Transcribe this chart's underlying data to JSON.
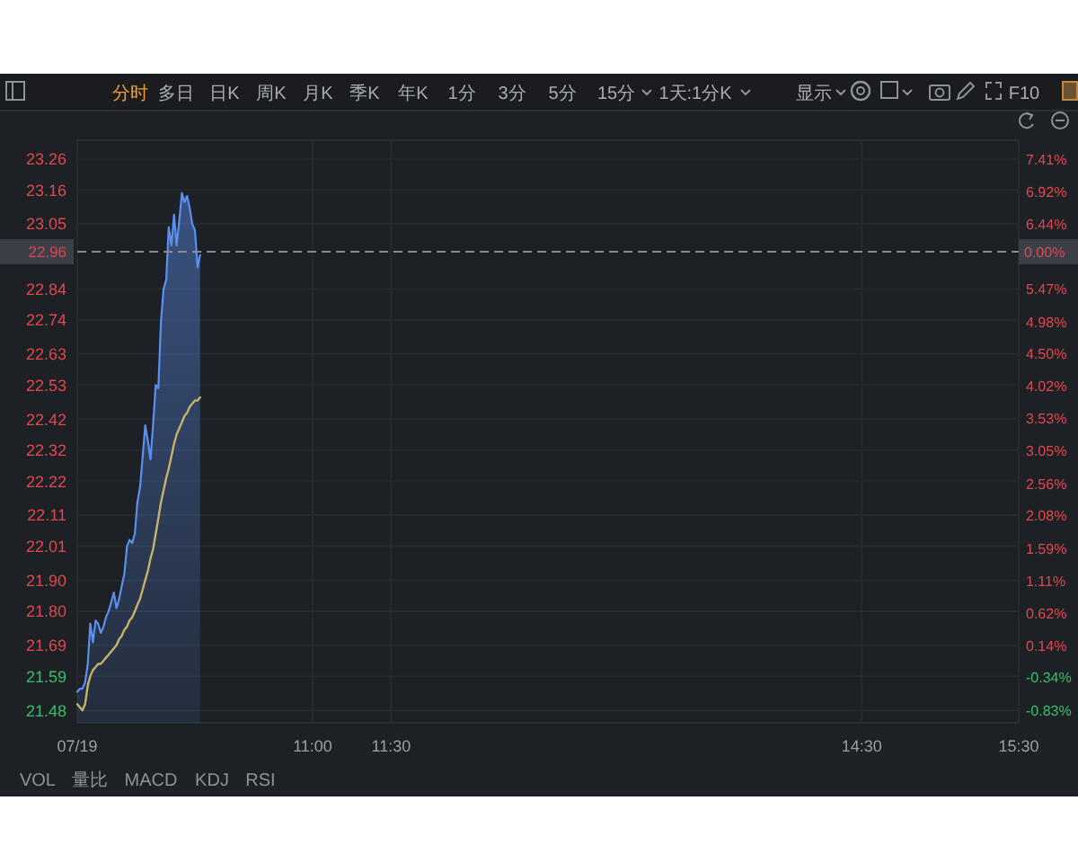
{
  "chart_data": {
    "type": "line",
    "x": [
      9.5,
      9.517,
      9.533,
      9.55,
      9.567,
      9.583,
      9.6,
      9.617,
      9.633,
      9.65,
      9.667,
      9.683,
      9.7,
      9.717,
      9.733,
      9.75,
      9.767,
      9.783,
      9.8,
      9.817,
      9.833,
      9.85,
      9.867,
      9.883,
      9.9,
      9.917,
      9.933,
      9.95,
      9.967,
      9.983,
      10,
      10.017,
      10.033,
      10.05,
      10.067,
      10.083,
      10.1,
      10.117,
      10.133,
      10.15,
      10.167,
      10.183,
      10.2,
      10.217,
      10.233,
      10.25,
      10.267,
      10.283
    ],
    "series": [
      {
        "type": "area",
        "color": "#5b8ff0",
        "values": [
          21.54,
          21.55,
          21.55,
          21.57,
          21.63,
          21.76,
          21.7,
          21.77,
          21.76,
          21.73,
          21.75,
          21.78,
          21.8,
          21.83,
          21.86,
          21.81,
          21.84,
          21.88,
          21.92,
          22.01,
          22.03,
          22.02,
          22.05,
          22.15,
          22.2,
          22.3,
          22.4,
          22.35,
          22.29,
          22.4,
          22.53,
          22.52,
          22.73,
          22.84,
          22.87,
          23.04,
          22.98,
          23.08,
          22.98,
          23.06,
          23.15,
          23.12,
          23.14,
          23.1,
          23.05,
          23.03,
          22.91,
          22.95
        ]
      },
      {
        "color": "#c7b26b",
        "values": [
          21.5,
          21.49,
          21.48,
          21.5,
          21.56,
          21.59,
          21.61,
          21.62,
          21.63,
          21.63,
          21.64,
          21.65,
          21.66,
          21.67,
          21.68,
          21.69,
          21.71,
          21.72,
          21.74,
          21.75,
          21.77,
          21.78,
          21.8,
          21.82,
          21.84,
          21.87,
          21.9,
          21.93,
          21.97,
          22.0,
          22.05,
          22.1,
          22.15,
          22.19,
          22.23,
          22.26,
          22.3,
          22.34,
          22.37,
          22.39,
          22.41,
          22.43,
          22.44,
          22.46,
          22.47,
          22.48,
          22.48,
          22.49
        ]
      }
    ],
    "xlim": [
      9.5,
      15.5
    ],
    "xticks": [
      {
        "value": 9.5,
        "label": "07/19"
      },
      {
        "value": 11,
        "label": "11:00"
      },
      {
        "value": 11.5,
        "label": "11:30"
      },
      {
        "value": 14.5,
        "label": "14:30"
      },
      {
        "value": 15.5,
        "label": "15:30"
      }
    ],
    "ylim": [
      21.44,
      23.32
    ],
    "yticks": [
      23.26,
      23.16,
      23.05,
      22.84,
      22.74,
      22.63,
      22.53,
      22.42,
      22.32,
      22.22,
      22.11,
      22.01,
      {
        "value": 21.9,
        "label": "21.90"
      },
      {
        "value": 21.8,
        "label": "21.80"
      },
      21.69,
      21.59,
      21.48
    ],
    "y2lim": [
      -1.02,
      7.69
    ],
    "y2ticks": [
      {
        "value": 7.41,
        "label": "7.41%"
      },
      {
        "value": 6.92,
        "label": "6.92%"
      },
      {
        "value": 6.44,
        "label": "6.44%"
      },
      {
        "value": 5.47,
        "label": "5.47%"
      },
      {
        "value": 4.98,
        "label": "4.98%"
      },
      {
        "value": 4.5,
        "label": "4.50%"
      },
      {
        "value": 4.02,
        "label": "4.02%"
      },
      {
        "value": 3.53,
        "label": "3.53%"
      },
      {
        "value": 3.05,
        "label": "3.05%"
      },
      {
        "value": 2.56,
        "label": "2.56%"
      },
      {
        "value": 2.08,
        "label": "2.08%"
      },
      {
        "value": 1.59,
        "label": "1.59%"
      },
      {
        "value": 1.11,
        "label": "1.11%"
      },
      {
        "value": 0.62,
        "label": "0.62%"
      },
      {
        "value": 0.14,
        "label": "0.14%"
      },
      {
        "value": -0.34,
        "label": "-0.34%"
      },
      {
        "value": -0.83,
        "label": "-0.83%"
      }
    ],
    "ref_lines": [
      {
        "axis": "y",
        "value": 22.96,
        "label": "22.96",
        "color": "#858b93",
        "line_style": "dashed"
      }
    ],
    "grid": true,
    "annotations": [
      "分时",
      "多日",
      "日K",
      "周K",
      "月K",
      "季K",
      "年K",
      "1分",
      "3分",
      "5分",
      "15分",
      "1天:1分K",
      "显示",
      "F10",
      "VOL",
      "量比",
      "MACD",
      "KDJ",
      "RSI",
      "0.00%"
    ]
  }
}
